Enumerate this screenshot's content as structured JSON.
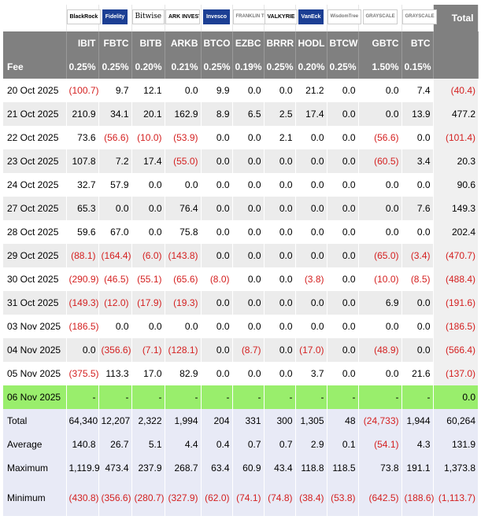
{
  "logos": [
    "BlackRock",
    "Fidelity",
    "Bitwise",
    "ARK INVEST",
    "Invesco",
    "FRANKLIN TEMPLETON",
    "VALKYRIE",
    "VanEck",
    "WisdomTree",
    "GRAYSCALE",
    "GRAYSCALE"
  ],
  "total_label": "Total",
  "tickers": [
    "IBIT",
    "FBTC",
    "BITB",
    "ARKB",
    "BTCO",
    "EZBC",
    "BRRR",
    "HODL",
    "BTCW",
    "GBTC",
    "BTC"
  ],
  "fee": {
    "label": "Fee",
    "values": [
      "0.25%",
      "0.25%",
      "0.20%",
      "0.21%",
      "0.25%",
      "0.19%",
      "0.25%",
      "0.20%",
      "0.25%",
      "1.50%",
      "0.15%"
    ]
  },
  "rows": [
    {
      "date": "20 Oct 2025",
      "values": [
        "(100.7)",
        "9.7",
        "12.1",
        "0.0",
        "9.9",
        "0.0",
        "0.0",
        "21.2",
        "0.0",
        "0.0",
        "7.4"
      ],
      "total": "(40.4)"
    },
    {
      "date": "21 Oct 2025",
      "values": [
        "210.9",
        "34.1",
        "20.1",
        "162.9",
        "8.9",
        "6.5",
        "2.5",
        "17.4",
        "0.0",
        "0.0",
        "13.9"
      ],
      "total": "477.2"
    },
    {
      "date": "22 Oct 2025",
      "values": [
        "73.6",
        "(56.6)",
        "(10.0)",
        "(53.9)",
        "0.0",
        "0.0",
        "2.1",
        "0.0",
        "0.0",
        "(56.6)",
        "0.0"
      ],
      "total": "(101.4)"
    },
    {
      "date": "23 Oct 2025",
      "values": [
        "107.8",
        "7.2",
        "17.4",
        "(55.0)",
        "0.0",
        "0.0",
        "0.0",
        "0.0",
        "0.0",
        "(60.5)",
        "3.4"
      ],
      "total": "20.3"
    },
    {
      "date": "24 Oct 2025",
      "values": [
        "32.7",
        "57.9",
        "0.0",
        "0.0",
        "0.0",
        "0.0",
        "0.0",
        "0.0",
        "0.0",
        "0.0",
        "0.0"
      ],
      "total": "90.6"
    },
    {
      "date": "27 Oct 2025",
      "values": [
        "65.3",
        "0.0",
        "0.0",
        "76.4",
        "0.0",
        "0.0",
        "0.0",
        "0.0",
        "0.0",
        "0.0",
        "7.6"
      ],
      "total": "149.3"
    },
    {
      "date": "28 Oct 2025",
      "values": [
        "59.6",
        "67.0",
        "0.0",
        "75.8",
        "0.0",
        "0.0",
        "0.0",
        "0.0",
        "0.0",
        "0.0",
        "0.0"
      ],
      "total": "202.4"
    },
    {
      "date": "29 Oct 2025",
      "values": [
        "(88.1)",
        "(164.4)",
        "(6.0)",
        "(143.8)",
        "0.0",
        "0.0",
        "0.0",
        "0.0",
        "0.0",
        "(65.0)",
        "(3.4)"
      ],
      "total": "(470.7)"
    },
    {
      "date": "30 Oct 2025",
      "values": [
        "(290.9)",
        "(46.5)",
        "(55.1)",
        "(65.6)",
        "(8.0)",
        "0.0",
        "0.0",
        "(3.8)",
        "0.0",
        "(10.0)",
        "(8.5)"
      ],
      "total": "(488.4)"
    },
    {
      "date": "31 Oct 2025",
      "values": [
        "(149.3)",
        "(12.0)",
        "(17.9)",
        "(19.3)",
        "0.0",
        "0.0",
        "0.0",
        "0.0",
        "0.0",
        "6.9",
        "0.0"
      ],
      "total": "(191.6)"
    },
    {
      "date": "03 Nov 2025",
      "values": [
        "(186.5)",
        "0.0",
        "0.0",
        "0.0",
        "0.0",
        "0.0",
        "0.0",
        "0.0",
        "0.0",
        "0.0",
        "0.0"
      ],
      "total": "(186.5)"
    },
    {
      "date": "04 Nov 2025",
      "values": [
        "0.0",
        "(356.6)",
        "(7.1)",
        "(128.1)",
        "0.0",
        "(8.7)",
        "0.0",
        "(17.0)",
        "0.0",
        "(48.9)",
        "0.0"
      ],
      "total": "(566.4)"
    },
    {
      "date": "05 Nov 2025",
      "values": [
        "(375.5)",
        "113.3",
        "17.0",
        "82.9",
        "0.0",
        "0.0",
        "0.0",
        "3.7",
        "0.0",
        "0.0",
        "21.6"
      ],
      "total": "(137.0)"
    },
    {
      "date": "06 Nov 2025",
      "values": [
        "-",
        "-",
        "-",
        "-",
        "-",
        "-",
        "-",
        "-",
        "-",
        "-",
        "-"
      ],
      "total": "0.0",
      "highlight": true
    }
  ],
  "stats": [
    {
      "label": "Total",
      "values": [
        "64,340",
        "12,207",
        "2,322",
        "1,994",
        "204",
        "331",
        "300",
        "1,305",
        "48",
        "(24,733)",
        "1,944"
      ],
      "total": "60,264"
    },
    {
      "label": "Average",
      "values": [
        "140.8",
        "26.7",
        "5.1",
        "4.4",
        "0.4",
        "0.7",
        "0.7",
        "2.9",
        "0.1",
        "(54.1)",
        "4.3"
      ],
      "total": "131.9"
    },
    {
      "label": "Maximum",
      "values": [
        "1,119.9",
        "473.4",
        "237.9",
        "268.7",
        "63.4",
        "60.9",
        "43.4",
        "118.8",
        "118.5",
        "73.8",
        "191.1"
      ],
      "total": "1,373.8"
    },
    {
      "label": "Minimum",
      "values": [
        "(430.8)",
        "(356.6)",
        "(280.7)",
        "(327.9)",
        "(62.0)",
        "(74.1)",
        "(74.8)",
        "(38.4)",
        "(53.8)",
        "(642.5)",
        "(188.6)"
      ],
      "total": "(1,113.7)"
    }
  ],
  "colors": {
    "header_bg": "#808080",
    "highlight": "#99ee6c",
    "negative": "#d42020",
    "stats_bg": "#e8eaf6"
  }
}
